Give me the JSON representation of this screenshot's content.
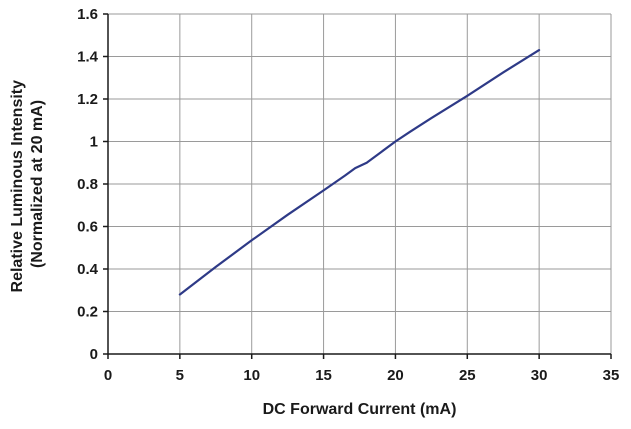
{
  "chart_data": {
    "type": "line",
    "title": "",
    "xlabel": "DC Forward Current (mA)",
    "ylabel": [
      "Relative Luminous Intensity",
      "(Normalized at 20 mA)"
    ],
    "xlim": [
      0,
      35
    ],
    "ylim": [
      0,
      1.6
    ],
    "x_ticks": [
      0,
      5,
      10,
      15,
      20,
      25,
      30,
      35
    ],
    "y_ticks": [
      0,
      0.2,
      0.4,
      0.6,
      0.8,
      1,
      1.2,
      1.4,
      1.6
    ],
    "x_tick_labels": [
      "0",
      "5",
      "10",
      "15",
      "20",
      "25",
      "30",
      "35"
    ],
    "y_tick_labels": [
      "0",
      "0.2",
      "0.4",
      "0.6",
      "0.8",
      "1",
      "1.2",
      "1.4",
      "1.6"
    ],
    "grid": true,
    "series": [
      {
        "color": "#2e3a87",
        "x": [
          5,
          7.5,
          10,
          12.5,
          15,
          16.5,
          17.2,
          18,
          19,
          20,
          21,
          22.5,
          25,
          27.5,
          30
        ],
        "y": [
          0.28,
          0.41,
          0.535,
          0.655,
          0.77,
          0.84,
          0.875,
          0.9,
          0.95,
          1.0,
          1.045,
          1.11,
          1.215,
          1.325,
          1.43
        ]
      }
    ]
  }
}
